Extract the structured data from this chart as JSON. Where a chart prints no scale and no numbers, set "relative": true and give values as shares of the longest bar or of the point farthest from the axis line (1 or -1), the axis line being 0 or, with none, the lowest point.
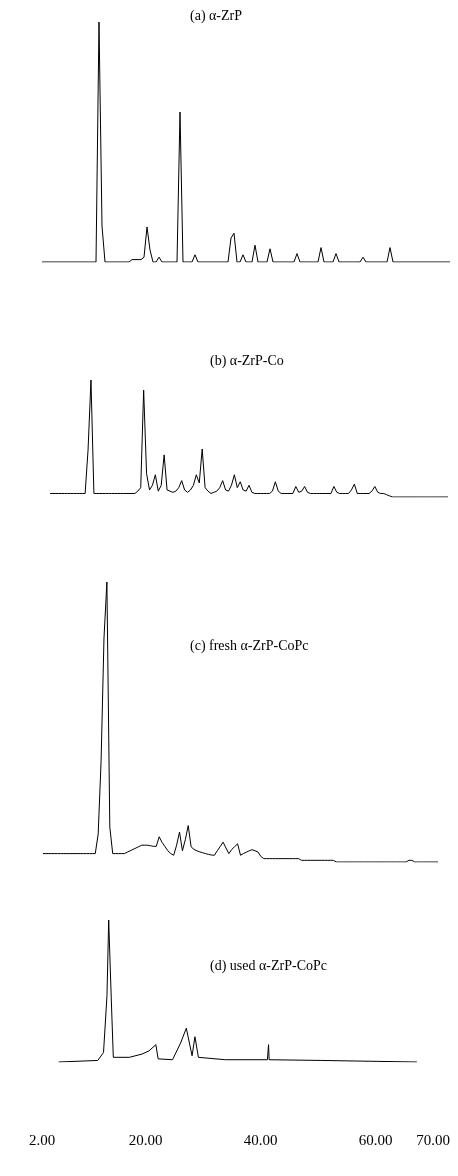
{
  "chart_data": [
    {
      "type": "line",
      "title": "(a) α-ZrP",
      "relative": true,
      "tick_labels": false,
      "grid": false,
      "categories": [
        null,
        null,
        null,
        null,
        null,
        null,
        null,
        null,
        null,
        null,
        null,
        null,
        null,
        null,
        null,
        null,
        null,
        null,
        null,
        null,
        null,
        null,
        null,
        null,
        null,
        null,
        null,
        null,
        null,
        null,
        null,
        null,
        null,
        null,
        null,
        null,
        null,
        null,
        null,
        null,
        null,
        null,
        null,
        null,
        null,
        null,
        null,
        null,
        null,
        null,
        null,
        null,
        null,
        null,
        null,
        null,
        null,
        null,
        null,
        null,
        null,
        null,
        null,
        null,
        null,
        null,
        null,
        null,
        null,
        null,
        null,
        null,
        null,
        null,
        null,
        null,
        null,
        null,
        null,
        null,
        null,
        null,
        null,
        null,
        null,
        null,
        null,
        null,
        null,
        null,
        null,
        null,
        null,
        null,
        null,
        null,
        null,
        null,
        null,
        null,
        null,
        null,
        null,
        null,
        null,
        null,
        null,
        null,
        null,
        null,
        null,
        null,
        null,
        null,
        null,
        null,
        null,
        null,
        null,
        null,
        null,
        null,
        null,
        null,
        null,
        null,
        null,
        null,
        null,
        null,
        null,
        null,
        null,
        null,
        null,
        null,
        null
      ],
      "series": [
        {
          "color": "#000000",
          "values": [
            0,
            0,
            0,
            0,
            0,
            0,
            0,
            0,
            0,
            0,
            0,
            0,
            0,
            0,
            0,
            0,
            0,
            0,
            0,
            1,
            0.15,
            0,
            0,
            0,
            0,
            0,
            0,
            0,
            0,
            0,
            0.01,
            0.01,
            0.01,
            0.01,
            0.02,
            0.146,
            0.05,
            0,
            0,
            0.02,
            0,
            0,
            0,
            0,
            0,
            0,
            0.625,
            0,
            0,
            0,
            0,
            0.03,
            0,
            0,
            0,
            0,
            0,
            0,
            0,
            0,
            0,
            0,
            0,
            0.1,
            0.12,
            0,
            0,
            0.03,
            0,
            0,
            0,
            0.07,
            0,
            0,
            0,
            0,
            0.055,
            0,
            0,
            0,
            0,
            0,
            0,
            0,
            0,
            0.035,
            0,
            0,
            0,
            0,
            0,
            0,
            0,
            0.06,
            0,
            0,
            0,
            0,
            0.035,
            0,
            0,
            0,
            0,
            0,
            0,
            0,
            0,
            0.02,
            0,
            0,
            0,
            0,
            0,
            0,
            0,
            0,
            0.06,
            0,
            0,
            0,
            0,
            0,
            0,
            0,
            0,
            0,
            0,
            0,
            0,
            0,
            0,
            0,
            0,
            0,
            0,
            0,
            0
          ]
        }
      ]
    },
    {
      "type": "line",
      "title": "(b) α-ZrP-Co",
      "relative": true,
      "tick_labels": false,
      "grid": false,
      "categories": [
        null,
        null,
        null,
        null,
        null,
        null,
        null,
        null,
        null,
        null,
        null,
        null,
        null,
        null,
        null,
        null,
        null,
        null,
        null,
        null,
        null,
        null,
        null,
        null,
        null,
        null,
        null,
        null,
        null,
        null,
        null,
        null,
        null,
        null,
        null,
        null,
        null,
        null,
        null,
        null,
        null,
        null,
        null,
        null,
        null,
        null,
        null,
        null,
        null,
        null,
        null,
        null,
        null,
        null,
        null,
        null,
        null,
        null,
        null,
        null,
        null,
        null,
        null,
        null,
        null,
        null,
        null,
        null,
        null,
        null,
        null,
        null,
        null,
        null,
        null,
        null,
        null,
        null,
        null,
        null,
        null,
        null,
        null,
        null,
        null,
        null,
        null,
        null,
        null,
        null,
        null,
        null,
        null,
        null,
        null,
        null,
        null,
        null,
        null,
        null,
        null,
        null,
        null,
        null,
        null,
        null,
        null,
        null,
        null,
        null,
        null,
        null,
        null,
        null,
        null,
        null,
        null,
        null,
        null,
        null,
        null,
        null,
        null,
        null,
        null,
        null,
        null,
        null,
        null,
        null,
        null,
        null,
        null,
        null,
        null,
        null,
        null
      ],
      "series": [
        {
          "color": "#000000",
          "values": [
            0.03,
            0.03,
            0.03,
            0.03,
            0.03,
            0.03,
            0.03,
            0.03,
            0.03,
            0.03,
            0.03,
            0.03,
            0.03,
            0.4,
            1,
            0.03,
            0.03,
            0.03,
            0.03,
            0.03,
            0.03,
            0.03,
            0.03,
            0.03,
            0.03,
            0.03,
            0.03,
            0.03,
            0.03,
            0.03,
            0.05,
            0.08,
            0.914,
            0.2,
            0.06,
            0.1,
            0.19,
            0.05,
            0.1,
            0.36,
            0.06,
            0.05,
            0.04,
            0.05,
            0.08,
            0.14,
            0.06,
            0.04,
            0.06,
            0.1,
            0.19,
            0.12,
            0.41,
            0.08,
            0.05,
            0.03,
            0.04,
            0.05,
            0.08,
            0.14,
            0.06,
            0.05,
            0.1,
            0.19,
            0.08,
            0.13,
            0.06,
            0.05,
            0.1,
            0.04,
            0.03,
            0.03,
            0.03,
            0.03,
            0.03,
            0.03,
            0.05,
            0.13,
            0.05,
            0.03,
            0.03,
            0.03,
            0.03,
            0.03,
            0.09,
            0.04,
            0.05,
            0.09,
            0.04,
            0.03,
            0.03,
            0.03,
            0.03,
            0.03,
            0.03,
            0.03,
            0.03,
            0.09,
            0.04,
            0.03,
            0.03,
            0.03,
            0.03,
            0.06,
            0.11,
            0.03,
            0.03,
            0.03,
            0.03,
            0.03,
            0.05,
            0.09,
            0.04,
            0.03,
            0.03,
            0.02,
            0.01,
            0,
            0,
            0,
            0,
            0,
            0,
            0,
            0,
            0,
            0,
            0,
            0,
            0,
            0,
            0,
            0,
            0,
            0,
            0,
            0
          ]
        }
      ]
    },
    {
      "type": "line",
      "title": "(c) fresh α-ZrP-CoPc",
      "relative": true,
      "tick_labels": false,
      "grid": false,
      "categories": [
        null,
        null,
        null,
        null,
        null,
        null,
        null,
        null,
        null,
        null,
        null,
        null,
        null,
        null,
        null,
        null,
        null,
        null,
        null,
        null,
        null,
        null,
        null,
        null,
        null,
        null,
        null,
        null,
        null,
        null,
        null,
        null,
        null,
        null,
        null,
        null,
        null,
        null,
        null,
        null,
        null,
        null,
        null,
        null,
        null,
        null,
        null,
        null,
        null,
        null,
        null,
        null,
        null,
        null,
        null,
        null,
        null,
        null,
        null,
        null,
        null,
        null,
        null,
        null,
        null,
        null,
        null,
        null,
        null,
        null,
        null,
        null,
        null,
        null,
        null,
        null,
        null,
        null,
        null,
        null,
        null,
        null,
        null,
        null,
        null,
        null,
        null,
        null,
        null,
        null,
        null,
        null,
        null,
        null,
        null,
        null,
        null,
        null,
        null,
        null,
        null,
        null,
        null,
        null,
        null,
        null,
        null,
        null,
        null,
        null,
        null,
        null,
        null,
        null,
        null,
        null,
        null,
        null,
        null,
        null,
        null,
        null,
        null,
        null,
        null,
        null,
        null,
        null,
        null,
        null,
        null,
        null,
        null,
        null,
        null,
        null,
        null
      ],
      "series": [
        {
          "color": "#000000",
          "values": [
            0.03,
            0.03,
            0.03,
            0.03,
            0.03,
            0.03,
            0.03,
            0.03,
            0.03,
            0.03,
            0.03,
            0.03,
            0.03,
            0.03,
            0.03,
            0.03,
            0.03,
            0.03,
            0.03,
            0.1,
            0.36,
            0.8,
            1,
            0.125,
            0.03,
            0.03,
            0.03,
            0.03,
            0.03,
            0.035,
            0.04,
            0.045,
            0.05,
            0.055,
            0.06,
            0.06,
            0.06,
            0.058,
            0.056,
            0.056,
            0.09,
            0.07,
            0.055,
            0.04,
            0.03,
            0.024,
            0.06,
            0.107,
            0.04,
            0.08,
            0.13,
            0.054,
            0.045,
            0.04,
            0.036,
            0.033,
            0.03,
            0.027,
            0.025,
            0.024,
            0.04,
            0.055,
            0.071,
            0.05,
            0.03,
            0.045,
            0.055,
            0.065,
            0.024,
            0.03,
            0.035,
            0.04,
            0.044,
            0.04,
            0.036,
            0.02,
            0.012,
            0.012,
            0.012,
            0.012,
            0.012,
            0.012,
            0.012,
            0.012,
            0.012,
            0.012,
            0.012,
            0.012,
            0.012,
            0.006,
            0.006,
            0.006,
            0.006,
            0.006,
            0.006,
            0.006,
            0.006,
            0.006,
            0.006,
            0.006,
            0.006,
            0,
            0,
            0,
            0,
            0,
            0,
            0,
            0,
            0,
            0,
            0,
            0,
            0,
            0,
            0,
            0,
            0,
            0,
            0,
            0,
            0,
            0,
            0,
            0,
            0,
            0.006,
            0.006,
            0,
            0,
            0,
            0,
            0,
            0,
            0,
            0,
            0
          ]
        }
      ]
    },
    {
      "type": "line",
      "title": "(d) used α-ZrP-CoPc",
      "relative": true,
      "xlim": [
        2,
        70
      ],
      "tick_labels": "x",
      "grid": false,
      "xticks": [
        {
          "value": 2,
          "label": "2.00"
        },
        {
          "value": 20,
          "label": "20.00"
        },
        {
          "value": 40,
          "label": "40.00"
        },
        {
          "value": 60,
          "label": "60.00"
        },
        {
          "value": 70,
          "label": "70.00"
        }
      ],
      "series": [
        {
          "color": "#000000",
          "x": [
            4.9,
            11.7,
            12.7,
            13.3,
            13.6,
            14.0,
            14.4,
            17.2,
            19.4,
            20.6,
            21.8,
            22.2,
            24.7,
            26.1,
            27.1,
            28.1,
            28.6,
            29.2,
            33.9,
            41.2,
            41.4,
            41.5,
            50.5,
            67.2
          ],
          "values": [
            0,
            0.011,
            0.067,
            0.467,
            1,
            0.5,
            0.033,
            0.033,
            0.056,
            0.078,
            0.122,
            0.022,
            0.016,
            0.133,
            0.238,
            0.044,
            0.178,
            0.033,
            0.016,
            0.016,
            0.122,
            0.016,
            0.011,
            0
          ]
        }
      ]
    }
  ]
}
